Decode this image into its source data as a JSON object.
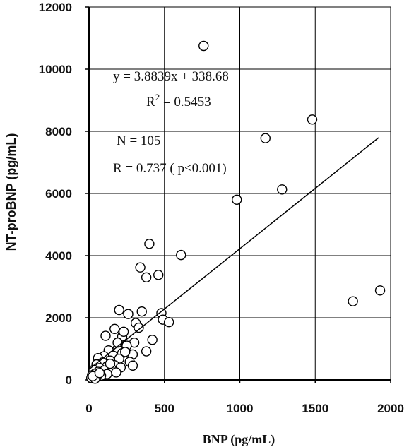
{
  "chart_data": {
    "type": "scatter",
    "xlabel": "BNP (pg/mL)",
    "ylabel": "NT-proBNP (pg/mL)",
    "xlim": [
      0,
      2000
    ],
    "ylim": [
      0,
      12000
    ],
    "x_ticks": [
      "0",
      "500",
      "1000",
      "1500",
      "2000"
    ],
    "y_ticks": [
      "0",
      "2000",
      "4000",
      "6000",
      "8000",
      "10000",
      "12000"
    ],
    "grid": true,
    "regression": {
      "slope": 3.8839,
      "intercept": 338.68,
      "x_range": [
        0,
        1920
      ]
    },
    "annotations": {
      "equation": "y = 3.8839x + 338.68",
      "r2_prefix": "R",
      "r2_sup": "2",
      "r2_value": " = 0.5453",
      "n": "N = 105",
      "r": "R = 0.737 ( p<0.001)"
    },
    "points": [
      {
        "x": 760,
        "y": 10750
      },
      {
        "x": 1480,
        "y": 8380
      },
      {
        "x": 1170,
        "y": 7780
      },
      {
        "x": 1280,
        "y": 6130
      },
      {
        "x": 980,
        "y": 5800
      },
      {
        "x": 610,
        "y": 4020
      },
      {
        "x": 400,
        "y": 4380
      },
      {
        "x": 340,
        "y": 3620
      },
      {
        "x": 460,
        "y": 3380
      },
      {
        "x": 380,
        "y": 3300
      },
      {
        "x": 1750,
        "y": 2530
      },
      {
        "x": 1930,
        "y": 2880
      },
      {
        "x": 200,
        "y": 2250
      },
      {
        "x": 260,
        "y": 2120
      },
      {
        "x": 350,
        "y": 2200
      },
      {
        "x": 480,
        "y": 2150
      },
      {
        "x": 310,
        "y": 1830
      },
      {
        "x": 490,
        "y": 1940
      },
      {
        "x": 530,
        "y": 1860
      },
      {
        "x": 330,
        "y": 1680
      },
      {
        "x": 170,
        "y": 1640
      },
      {
        "x": 110,
        "y": 1420
      },
      {
        "x": 220,
        "y": 1400
      },
      {
        "x": 420,
        "y": 1290
      },
      {
        "x": 300,
        "y": 1200
      },
      {
        "x": 250,
        "y": 1100
      },
      {
        "x": 190,
        "y": 1000
      },
      {
        "x": 130,
        "y": 950
      },
      {
        "x": 380,
        "y": 920
      },
      {
        "x": 220,
        "y": 860
      },
      {
        "x": 290,
        "y": 820
      },
      {
        "x": 160,
        "y": 780
      },
      {
        "x": 100,
        "y": 760
      },
      {
        "x": 60,
        "y": 700
      },
      {
        "x": 200,
        "y": 680
      },
      {
        "x": 140,
        "y": 620
      },
      {
        "x": 270,
        "y": 580
      },
      {
        "x": 90,
        "y": 560
      },
      {
        "x": 50,
        "y": 500
      },
      {
        "x": 170,
        "y": 470
      },
      {
        "x": 120,
        "y": 440
      },
      {
        "x": 290,
        "y": 460
      },
      {
        "x": 210,
        "y": 400
      },
      {
        "x": 70,
        "y": 380
      },
      {
        "x": 150,
        "y": 350
      },
      {
        "x": 30,
        "y": 320
      },
      {
        "x": 100,
        "y": 300
      },
      {
        "x": 60,
        "y": 260
      },
      {
        "x": 180,
        "y": 240
      },
      {
        "x": 40,
        "y": 200
      },
      {
        "x": 120,
        "y": 190
      },
      {
        "x": 20,
        "y": 150
      },
      {
        "x": 80,
        "y": 140
      },
      {
        "x": 50,
        "y": 100
      },
      {
        "x": 30,
        "y": 80
      },
      {
        "x": 15,
        "y": 60
      },
      {
        "x": 40,
        "y": 40
      },
      {
        "x": 25,
        "y": 120
      },
      {
        "x": 70,
        "y": 220
      },
      {
        "x": 140,
        "y": 520
      },
      {
        "x": 240,
        "y": 900
      },
      {
        "x": 190,
        "y": 1200
      },
      {
        "x": 230,
        "y": 1550
      }
    ]
  }
}
